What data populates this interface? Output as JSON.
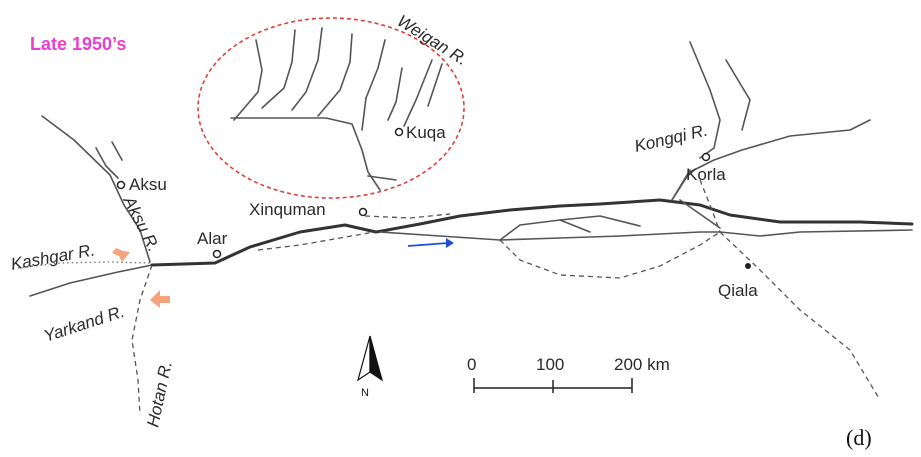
{
  "map": {
    "period_label": "Late 1950’s",
    "panel_label": "(d)",
    "north_label": "N",
    "colors": {
      "period": "#e83fd0",
      "flow_arrow": "#1f4fd6",
      "inflow_arrows": "#f4a37c",
      "irrigation_outline": "#e0403a"
    },
    "icons": [
      "north-arrow-icon",
      "flow-direction-arrow-icon",
      "inflow-arrow-icon"
    ],
    "places": {
      "aksu": "Aksu",
      "alar": "Alar",
      "xinquman": "Xinquman",
      "kuqa": "Kuqa",
      "korla": "Korla",
      "qiala": "Qiala"
    },
    "rivers": {
      "aksu": "Aksu R.",
      "kashgar": "Kashgar R.",
      "yarkand": "Yarkand R.",
      "hotan": "Hotan R.",
      "weigan": "Weigan R.",
      "kongqi": "Kongqi R."
    },
    "scale_bar": {
      "ticks": [
        "0",
        "100",
        "200 km"
      ]
    }
  }
}
